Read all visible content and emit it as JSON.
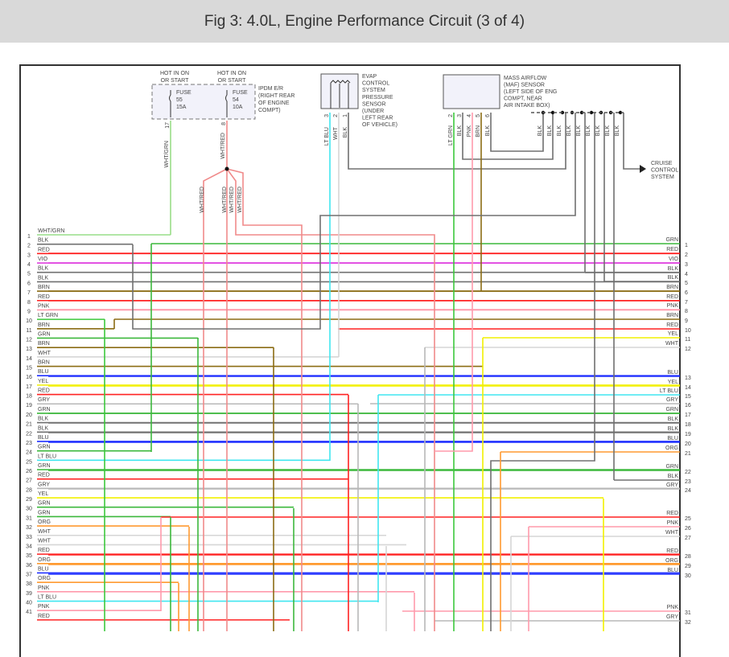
{
  "title": "Fig 3: 4.0L, Engine Performance Circuit (3 of 4)",
  "colors": {
    "GRN": "#3cb83c",
    "RED": "#ff2222",
    "VIO": "#e040e0",
    "BLK": "#707070",
    "BRN": "#8b6c14",
    "PNK": "#ff9aac",
    "LT GRN": "#3cc83c",
    "WHT": "#d6d6d6",
    "BLU": "#2030ff",
    "YEL": "#f2f000",
    "GRY": "#b8b8b8",
    "LT BLU": "#40e6f0",
    "ORG": "#ff9a30",
    "WHT/GRN": "#99dd88",
    "WHT/RED": "#f08a8a",
    "label_blue": "#7a7ae0"
  },
  "ipdm": {
    "hot1": [
      "HOT IN ON",
      "OR START"
    ],
    "hot2": [
      "HOT IN ON",
      "OR START"
    ],
    "fuse1": [
      "FUSE",
      "55",
      "15A"
    ],
    "fuse2": [
      "FUSE",
      "54",
      "10A"
    ],
    "name": "IPDM E/R",
    "loc": [
      "(RIGHT REAR",
      "OF ENGINE",
      "COMPT)"
    ],
    "pin1": "17",
    "pin2": "8",
    "wire1": "WHT/GRN",
    "wire2": "WHT/RED",
    "branches": [
      "WHT/RED",
      "WHT/RED",
      "WHT/RED",
      "WHT/RED"
    ]
  },
  "evap": {
    "name": [
      "EVAP",
      "CONTROL",
      "SYSTEM",
      "PRESSURE",
      "SENSOR"
    ],
    "loc": [
      "(UNDER",
      "LEFT REAR",
      "OF VEHICLE)"
    ],
    "pins": [
      "3",
      "2",
      "1"
    ],
    "wires": [
      "LT BLU",
      "WHT",
      "BLK"
    ]
  },
  "maf": {
    "name": [
      "MASS AIRFLOW",
      "(MAF) SENSOR"
    ],
    "loc": [
      "(LEFT SIDE OF ENG",
      "COMPT, NEAR",
      "AIR INTAKE BOX)"
    ],
    "pins": [
      "2",
      "3",
      "4",
      "5",
      "6"
    ],
    "wires": [
      "LT GRN",
      "BLK",
      "PNK",
      "BRN",
      "BLK"
    ]
  },
  "ground_wires": [
    "BLK",
    "BLK",
    "BLK",
    "BLK",
    "BLK",
    "BLK",
    "BLK",
    "BLK",
    "BLK"
  ],
  "cruise": [
    "CRUISE",
    "CONTROL",
    "SYSTEM"
  ],
  "left_wires": [
    {
      "n": "1",
      "c": "WHT/GRN"
    },
    {
      "n": "2",
      "c": "BLK"
    },
    {
      "n": "3",
      "c": "RED"
    },
    {
      "n": "4",
      "c": "VIO"
    },
    {
      "n": "5",
      "c": "BLK"
    },
    {
      "n": "6",
      "c": "BLK"
    },
    {
      "n": "7",
      "c": "BRN"
    },
    {
      "n": "8",
      "c": "RED"
    },
    {
      "n": "9",
      "c": "PNK"
    },
    {
      "n": "10",
      "c": "LT GRN"
    },
    {
      "n": "11",
      "c": "BRN"
    },
    {
      "n": "12",
      "c": "GRN"
    },
    {
      "n": "13",
      "c": "BRN"
    },
    {
      "n": "14",
      "c": "WHT"
    },
    {
      "n": "15",
      "c": "BRN"
    },
    {
      "n": "16",
      "c": "BLU"
    },
    {
      "n": "17",
      "c": "YEL"
    },
    {
      "n": "18",
      "c": "RED"
    },
    {
      "n": "19",
      "c": "GRY"
    },
    {
      "n": "20",
      "c": "GRN"
    },
    {
      "n": "21",
      "c": "BLK"
    },
    {
      "n": "22",
      "c": "BLK"
    },
    {
      "n": "23",
      "c": "BLU"
    },
    {
      "n": "24",
      "c": "GRN"
    },
    {
      "n": "25",
      "c": "LT BLU"
    },
    {
      "n": "26",
      "c": "GRN"
    },
    {
      "n": "27",
      "c": "RED"
    },
    {
      "n": "28",
      "c": "GRY"
    },
    {
      "n": "29",
      "c": "YEL"
    },
    {
      "n": "30",
      "c": "GRN"
    },
    {
      "n": "31",
      "c": "GRN"
    },
    {
      "n": "32",
      "c": "ORG"
    },
    {
      "n": "33",
      "c": "WHT"
    },
    {
      "n": "34",
      "c": "WHT"
    },
    {
      "n": "35",
      "c": "RED"
    },
    {
      "n": "36",
      "c": "ORG"
    },
    {
      "n": "37",
      "c": "BLU"
    },
    {
      "n": "38",
      "c": "ORG"
    },
    {
      "n": "39",
      "c": "PNK"
    },
    {
      "n": "40",
      "c": "LT BLU"
    },
    {
      "n": "41",
      "c": "PNK"
    },
    {
      "n": "",
      "c": "RED"
    }
  ],
  "right_wires": [
    {
      "n": "1",
      "c": "GRN"
    },
    {
      "n": "2",
      "c": "RED"
    },
    {
      "n": "3",
      "c": "VIO"
    },
    {
      "n": "4",
      "c": "BLK"
    },
    {
      "n": "5",
      "c": "BLK"
    },
    {
      "n": "6",
      "c": "BRN"
    },
    {
      "n": "7",
      "c": "RED"
    },
    {
      "n": "8",
      "c": "PNK"
    },
    {
      "n": "9",
      "c": "BRN"
    },
    {
      "n": "10",
      "c": "RED"
    },
    {
      "n": "11",
      "c": "YEL"
    },
    {
      "n": "12",
      "c": "WHT"
    },
    {
      "n": "13",
      "c": "BLU"
    },
    {
      "n": "14",
      "c": "YEL"
    },
    {
      "n": "15",
      "c": "LT BLU"
    },
    {
      "n": "16",
      "c": "GRY"
    },
    {
      "n": "17",
      "c": "GRN"
    },
    {
      "n": "18",
      "c": "BLK"
    },
    {
      "n": "19",
      "c": "BLK"
    },
    {
      "n": "20",
      "c": "BLU"
    },
    {
      "n": "21",
      "c": "ORG"
    },
    {
      "n": "22",
      "c": "GRN"
    },
    {
      "n": "23",
      "c": "BLK"
    },
    {
      "n": "24",
      "c": "GRY"
    },
    {
      "n": "25",
      "c": "RED"
    },
    {
      "n": "26",
      "c": "PNK"
    },
    {
      "n": "27",
      "c": "WHT"
    },
    {
      "n": "28",
      "c": "RED"
    },
    {
      "n": "29",
      "c": "ORG"
    },
    {
      "n": "30",
      "c": "BLU"
    },
    {
      "n": "31",
      "c": "PNK"
    },
    {
      "n": "32",
      "c": "GRY"
    }
  ]
}
